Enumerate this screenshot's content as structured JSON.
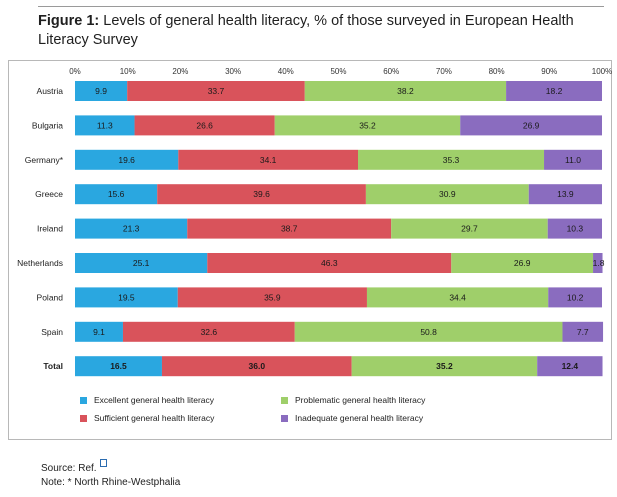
{
  "figure": {
    "prefix": "Figure 1:",
    "caption": " Levels of general health literacy, % of those surveyed in European Health Literacy Survey"
  },
  "source_label": "Source: Ref.",
  "note": "Note: * North Rhine-Westphalia",
  "colors": {
    "excellent": "#2aa7e0",
    "sufficient": "#d9535b",
    "problematic": "#9fcf6a",
    "inadequate": "#8a6cbf"
  },
  "chart_data": {
    "type": "bar",
    "orientation": "horizontal",
    "stacked": true,
    "categories": [
      "Austria",
      "Bulgaria",
      "Germany*",
      "Greece",
      "Ireland",
      "Netherlands",
      "Poland",
      "Spain",
      "Total"
    ],
    "series": [
      {
        "name": "Excellent general health literacy",
        "key": "excellent",
        "values": [
          9.9,
          11.3,
          19.6,
          15.6,
          21.3,
          25.1,
          19.5,
          9.1,
          16.5
        ],
        "labels": [
          "9.9",
          "11.3",
          "19.6",
          "15.6",
          "21.3",
          "25.1",
          "19.5",
          "9.1",
          "16.5"
        ]
      },
      {
        "name": "Sufficient general health literacy",
        "key": "sufficient",
        "values": [
          33.7,
          26.6,
          34.1,
          39.6,
          38.7,
          46.3,
          35.9,
          32.6,
          36.0
        ],
        "labels": [
          "33.7",
          "26.6",
          "34.1",
          "39.6",
          "38.7",
          "46.3",
          "35.9",
          "32.6",
          "36.0"
        ]
      },
      {
        "name": "Problematic general health literacy",
        "key": "problematic",
        "values": [
          38.2,
          35.2,
          35.3,
          30.9,
          29.7,
          26.9,
          34.4,
          50.8,
          35.2
        ],
        "labels": [
          "38.2",
          "35.2",
          "35.3",
          "30.9",
          "29.7",
          "26.9",
          "34.4",
          "50.8",
          "35.2"
        ]
      },
      {
        "name": "Inadequate general health literacy",
        "key": "inadequate",
        "values": [
          18.2,
          26.9,
          11.0,
          13.9,
          10.3,
          1.8,
          10.2,
          7.7,
          12.4
        ],
        "labels": [
          "18.2",
          "26.9",
          "11.0",
          "13.9",
          "10.3",
          "1.8",
          "10.2",
          "7.7",
          "12.4"
        ]
      }
    ],
    "xlim": [
      0,
      100
    ],
    "xticks": [
      "0%",
      "10%",
      "20%",
      "30%",
      "40%",
      "50%",
      "60%",
      "70%",
      "80%",
      "90%",
      "100%"
    ],
    "xaxis_position": "top",
    "bold_categories": [
      "Total"
    ],
    "legend": {
      "position": "bottom",
      "order": [
        "excellent",
        "problematic",
        "sufficient",
        "inadequate"
      ]
    },
    "title": "",
    "xlabel": "",
    "ylabel": ""
  }
}
